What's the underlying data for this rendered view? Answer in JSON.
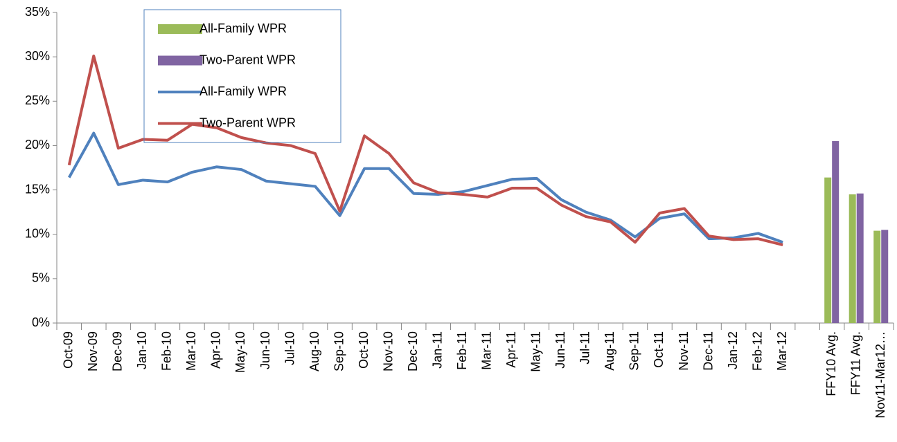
{
  "chart_data": {
    "type": "line",
    "categories": [
      "Oct-09",
      "Nov-09",
      "Dec-09",
      "Jan-10",
      "Feb-10",
      "Mar-10",
      "Apr-10",
      "May-10",
      "Jun-10",
      "Jul-10",
      "Aug-10",
      "Sep-10",
      "Oct-10",
      "Nov-10",
      "Dec-10",
      "Jan-11",
      "Feb-11",
      "Mar-11",
      "Apr-11",
      "May-11",
      "Jun-11",
      "Jul-11",
      "Aug-11",
      "Sep-11",
      "Oct-11",
      "Nov-11",
      "Dec-11",
      "Jan-12",
      "Feb-12",
      "Mar-12",
      null,
      "FFY10 Avg.",
      "FFY11 Avg.",
      "Nov11-Mar12…"
    ],
    "series": [
      {
        "name": "All-Family WPR",
        "type": "bar",
        "color": "#9bbb59",
        "values": [
          null,
          null,
          null,
          null,
          null,
          null,
          null,
          null,
          null,
          null,
          null,
          null,
          null,
          null,
          null,
          null,
          null,
          null,
          null,
          null,
          null,
          null,
          null,
          null,
          null,
          null,
          null,
          null,
          null,
          null,
          null,
          16.4,
          14.5,
          10.4
        ]
      },
      {
        "name": "Two-Parent WPR",
        "type": "bar",
        "color": "#8064a2",
        "values": [
          null,
          null,
          null,
          null,
          null,
          null,
          null,
          null,
          null,
          null,
          null,
          null,
          null,
          null,
          null,
          null,
          null,
          null,
          null,
          null,
          null,
          null,
          null,
          null,
          null,
          null,
          null,
          null,
          null,
          null,
          null,
          20.5,
          14.6,
          10.5
        ]
      },
      {
        "name": "All-Family WPR",
        "type": "line",
        "color": "#4f81bd",
        "values": [
          16.4,
          21.4,
          15.6,
          16.1,
          15.9,
          17.0,
          17.6,
          17.3,
          16.0,
          15.7,
          15.4,
          12.1,
          17.4,
          17.4,
          14.6,
          14.5,
          14.8,
          15.5,
          16.2,
          16.3,
          13.9,
          12.5,
          11.6,
          9.7,
          11.8,
          12.3,
          9.5,
          9.6,
          10.1,
          9.1,
          null,
          null,
          null,
          null
        ]
      },
      {
        "name": "Two-Parent WPR",
        "type": "line",
        "color": "#c0504d",
        "values": [
          17.8,
          30.1,
          19.7,
          20.7,
          20.6,
          22.4,
          22.0,
          20.9,
          20.3,
          20.0,
          19.1,
          12.6,
          21.1,
          19.1,
          15.8,
          14.7,
          14.5,
          14.2,
          15.2,
          15.2,
          13.3,
          12.0,
          11.4,
          9.1,
          12.4,
          12.9,
          9.8,
          9.4,
          9.5,
          8.8,
          null,
          null,
          null,
          null
        ]
      }
    ],
    "ylim": [
      0,
      35
    ],
    "yticks": [
      {
        "value": 0,
        "label": "0%"
      },
      {
        "value": 5,
        "label": "5%"
      },
      {
        "value": 10,
        "label": "10%"
      },
      {
        "value": 15,
        "label": "15%"
      },
      {
        "value": 20,
        "label": "20%"
      },
      {
        "value": 25,
        "label": "25%"
      },
      {
        "value": 30,
        "label": "30%"
      },
      {
        "value": 35,
        "label": "35%"
      }
    ],
    "grid": false,
    "legend": "top-left"
  }
}
